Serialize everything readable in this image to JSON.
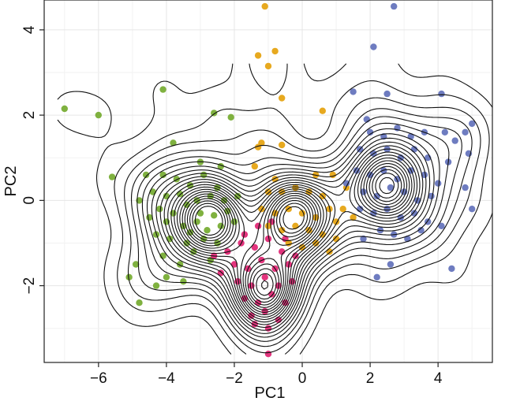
{
  "chart_data": {
    "type": "scatter",
    "xlabel": "PC1",
    "ylabel": "PC2",
    "xlim": [
      -7.6,
      5.6
    ],
    "ylim": [
      -3.8,
      4.7
    ],
    "xticks": [
      -6,
      -4,
      -2,
      0,
      2,
      4
    ],
    "yticks": [
      -2,
      0,
      2,
      4
    ],
    "xtick_labels": [
      "−6",
      "−4",
      "−2",
      "0",
      "2",
      "4"
    ],
    "ytick_labels": [
      "−2",
      "0",
      "2",
      "4"
    ],
    "grid": true,
    "legend": "none",
    "overlay": "density contours",
    "series": [
      {
        "color": "#7fb13f",
        "center": [
          -2.7,
          -0.45
        ],
        "points": [
          [
            -7.0,
            2.15
          ],
          [
            -6.0,
            2.0
          ],
          [
            -5.6,
            0.55
          ],
          [
            -4.6,
            0.6
          ],
          [
            -4.1,
            2.6
          ],
          [
            -3.8,
            1.35
          ],
          [
            -2.6,
            2.05
          ],
          [
            -2.1,
            1.95
          ],
          [
            -4.1,
            0.6
          ],
          [
            -3.7,
            0.5
          ],
          [
            -3.3,
            0.35
          ],
          [
            -2.9,
            0.6
          ],
          [
            -2.5,
            0.3
          ],
          [
            -4.4,
            0.2
          ],
          [
            -4.0,
            0.1
          ],
          [
            -3.6,
            0.15
          ],
          [
            -3.1,
            0.0
          ],
          [
            -2.7,
            0.1
          ],
          [
            -2.3,
            0.0
          ],
          [
            -1.9,
            0.1
          ],
          [
            -4.2,
            -0.2
          ],
          [
            -3.8,
            -0.3
          ],
          [
            -3.4,
            -0.1
          ],
          [
            -3.0,
            -0.3
          ],
          [
            -2.6,
            -0.35
          ],
          [
            -2.2,
            -0.25
          ],
          [
            -4.5,
            -0.4
          ],
          [
            -4.0,
            -0.5
          ],
          [
            -3.5,
            -0.6
          ],
          [
            -3.1,
            -0.5
          ],
          [
            -2.8,
            -0.7
          ],
          [
            -2.4,
            -0.6
          ],
          [
            -2.0,
            -0.5
          ],
          [
            -4.3,
            -0.8
          ],
          [
            -3.9,
            -0.9
          ],
          [
            -3.4,
            -1.0
          ],
          [
            -2.9,
            -0.9
          ],
          [
            -2.5,
            -1.0
          ],
          [
            -4.1,
            -1.3
          ],
          [
            -3.6,
            -1.5
          ],
          [
            -3.2,
            -1.2
          ],
          [
            -2.7,
            -1.4
          ],
          [
            -4.0,
            -1.8
          ],
          [
            -3.5,
            -1.9
          ],
          [
            -4.9,
            -1.5
          ],
          [
            -4.3,
            -2.0
          ],
          [
            -5.1,
            -1.8
          ],
          [
            -4.8,
            -2.4
          ],
          [
            -3.0,
            0.9
          ],
          [
            -2.4,
            0.8
          ],
          [
            -4.8,
            0.0
          ],
          [
            -3.3,
            -0.75
          ]
        ]
      },
      {
        "color": "#e3347d",
        "center": [
          -1.1,
          -2.05
        ],
        "points": [
          [
            -2.2,
            -1.2
          ],
          [
            -1.8,
            -1.0
          ],
          [
            -1.4,
            -1.1
          ],
          [
            -1.0,
            -0.9
          ],
          [
            -0.6,
            -1.2
          ],
          [
            -2.0,
            -1.5
          ],
          [
            -1.6,
            -1.6
          ],
          [
            -1.2,
            -1.4
          ],
          [
            -0.8,
            -1.6
          ],
          [
            -0.4,
            -1.5
          ],
          [
            -1.9,
            -1.9
          ],
          [
            -1.5,
            -2.0
          ],
          [
            -1.1,
            -1.8
          ],
          [
            -0.7,
            -2.0
          ],
          [
            -0.3,
            -1.9
          ],
          [
            -1.7,
            -2.3
          ],
          [
            -1.3,
            -2.4
          ],
          [
            -0.9,
            -2.2
          ],
          [
            -0.5,
            -2.4
          ],
          [
            -1.5,
            -2.7
          ],
          [
            -1.1,
            -2.6
          ],
          [
            -0.7,
            -2.8
          ],
          [
            -1.0,
            -3.0
          ],
          [
            -1.3,
            -0.6
          ],
          [
            -0.9,
            -0.5
          ],
          [
            -2.4,
            -1.7
          ],
          [
            -1.0,
            -3.6
          ],
          [
            -0.5,
            -0.9
          ],
          [
            -1.7,
            -0.8
          ],
          [
            -0.2,
            -1.3
          ],
          [
            -2.6,
            -1.3
          ],
          [
            -1.4,
            -2.9
          ]
        ]
      },
      {
        "color": "#e7a91f",
        "center": [
          -0.2,
          -0.3
        ],
        "points": [
          [
            -1.1,
            4.55
          ],
          [
            -1.3,
            3.4
          ],
          [
            -0.8,
            3.5
          ],
          [
            -1.0,
            3.15
          ],
          [
            -0.6,
            2.4
          ],
          [
            0.6,
            2.1
          ],
          [
            -1.3,
            1.25
          ],
          [
            -1.2,
            1.35
          ],
          [
            -0.6,
            1.3
          ],
          [
            -1.4,
            0.8
          ],
          [
            -1.0,
            0.2
          ],
          [
            -0.6,
            0.2
          ],
          [
            -0.2,
            0.3
          ],
          [
            0.2,
            0.2
          ],
          [
            0.6,
            0.1
          ],
          [
            -1.2,
            -0.2
          ],
          [
            -0.8,
            -0.3
          ],
          [
            -0.4,
            -0.2
          ],
          [
            0.0,
            -0.3
          ],
          [
            0.4,
            -0.4
          ],
          [
            0.8,
            -0.2
          ],
          [
            -1.0,
            -0.6
          ],
          [
            -0.6,
            -0.7
          ],
          [
            -0.2,
            -0.6
          ],
          [
            0.2,
            -0.7
          ],
          [
            0.6,
            -0.8
          ],
          [
            1.0,
            -0.5
          ],
          [
            -0.4,
            -1.0
          ],
          [
            0.0,
            -1.1
          ],
          [
            0.4,
            -1.0
          ],
          [
            0.8,
            -1.2
          ],
          [
            -0.8,
            0.5
          ],
          [
            0.4,
            0.6
          ],
          [
            0.9,
            0.6
          ],
          [
            1.3,
            0.3
          ],
          [
            1.2,
            -0.2
          ],
          [
            1.0,
            -0.9
          ],
          [
            1.5,
            -0.4
          ]
        ]
      },
      {
        "color": "#6e7cc0",
        "center": [
          2.5,
          0.35
        ],
        "points": [
          [
            2.7,
            4.55
          ],
          [
            2.1,
            3.6
          ],
          [
            1.5,
            2.55
          ],
          [
            2.5,
            2.5
          ],
          [
            4.1,
            2.5
          ],
          [
            4.2,
            1.6
          ],
          [
            4.5,
            1.4
          ],
          [
            4.8,
            1.6
          ],
          [
            5.0,
            1.8
          ],
          [
            4.9,
            1.1
          ],
          [
            4.8,
            0.3
          ],
          [
            5.0,
            -0.2
          ],
          [
            4.4,
            -1.6
          ],
          [
            2.6,
            -1.5
          ],
          [
            2.2,
            -1.8
          ],
          [
            1.8,
            -0.9
          ],
          [
            3.1,
            -0.9
          ],
          [
            2.0,
            1.6
          ],
          [
            2.4,
            1.5
          ],
          [
            2.8,
            1.7
          ],
          [
            3.2,
            1.5
          ],
          [
            1.7,
            1.2
          ],
          [
            2.1,
            1.1
          ],
          [
            2.5,
            1.2
          ],
          [
            2.9,
            1.0
          ],
          [
            3.3,
            1.2
          ],
          [
            3.7,
            1.0
          ],
          [
            1.6,
            0.7
          ],
          [
            2.0,
            0.6
          ],
          [
            2.4,
            0.7
          ],
          [
            2.8,
            0.5
          ],
          [
            3.2,
            0.7
          ],
          [
            3.6,
            0.6
          ],
          [
            4.0,
            0.4
          ],
          [
            1.8,
            0.2
          ],
          [
            2.2,
            0.1
          ],
          [
            2.6,
            0.3
          ],
          [
            3.0,
            0.2
          ],
          [
            3.4,
            0.0
          ],
          [
            3.8,
            0.1
          ],
          [
            1.7,
            -0.2
          ],
          [
            2.1,
            -0.3
          ],
          [
            2.5,
            -0.2
          ],
          [
            2.9,
            -0.4
          ],
          [
            3.3,
            -0.3
          ],
          [
            3.7,
            -0.5
          ],
          [
            2.3,
            -0.7
          ],
          [
            2.7,
            -0.8
          ],
          [
            3.5,
            -0.7
          ],
          [
            4.1,
            -0.6
          ],
          [
            1.9,
            1.9
          ],
          [
            3.6,
            1.6
          ],
          [
            1.3,
            0.4
          ],
          [
            4.3,
            0.9
          ]
        ]
      }
    ]
  }
}
